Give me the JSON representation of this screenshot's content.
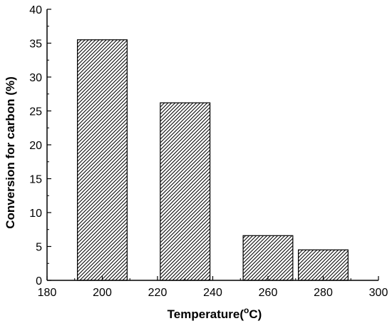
{
  "chart_data": {
    "type": "bar",
    "x": [
      200,
      230,
      260,
      280
    ],
    "values": [
      35.5,
      26.2,
      6.6,
      4.5
    ],
    "bar_width": 9,
    "xlim": [
      180,
      300
    ],
    "ylim": [
      0,
      40
    ],
    "xticks": [
      180,
      200,
      220,
      240,
      260,
      280,
      300
    ],
    "yticks": [
      0,
      5,
      10,
      15,
      20,
      25,
      30,
      35,
      40
    ],
    "xlabel_text": "Temperature(",
    "xlabel_degree": "o",
    "xlabel_unit": "C)",
    "ylabel": "Conversion for carbon (%)",
    "bar_fill": "hatched",
    "bar_color": "#000000",
    "background": "#ffffff",
    "grid": false,
    "legend": "none"
  }
}
